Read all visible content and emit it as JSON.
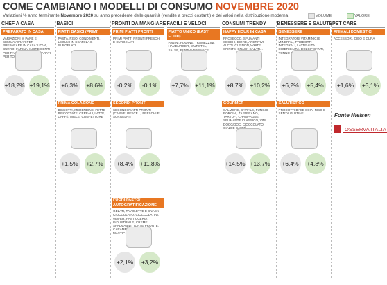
{
  "header": {
    "title_main": "COME CAMBIANO I MODELLI DI CONSUMO",
    "title_highlight": "NOVEMBRE 2020",
    "subtitle": [
      "Variazioni % anno terminante ",
      "Novembre 2020",
      " su anno precedente delle quantità (vendite a prezzi costanti) e dei valori nella distribuzione moderna"
    ],
    "legend": [
      "VOLUME",
      "VALORE"
    ]
  },
  "columns": [
    {
      "title": "CHEF A CASA",
      "cards": [
        {
          "row": 0,
          "label": "PREPARATO IN CASA",
          "description": "VARIAZIONI % PANE E SEMILAVORATI PER PREPARARE IN CASA: UOVA, BURRO, FARINA, INGREDIENTI PER PASTICCERIA, PREPARATI PER TORTE E DESSERT",
          "volume": "+18,2%",
          "valore": "+19,1%"
        }
      ]
    },
    {
      "title": "BASICI",
      "cards": [
        {
          "row": 0,
          "label": "PIATTI BASICI (PRIMI)",
          "description": "PASTA, RISO, CONDIMENTI, LEGUMI IN SCATOLA E SURGELATI",
          "volume": "+6,3%",
          "valore": "+8,6%"
        },
        {
          "row": 1,
          "label": "PRIMA COLAZIONE",
          "description": "BISCOTTI, MERENDINE, FETTE BISCOTTATE, CEREALI, LATTE, CAFFÈ, MIELE, CONFETTURE",
          "volume": "+1,5%",
          "valore": "+2,7%"
        }
      ]
    },
    {
      "title": "PRONTI DA MANGIARE",
      "cards": [
        {
          "row": 0,
          "label": "PRIMI PIATTI PRONTI",
          "description": "PRIMI PIATTI PRONTI FRESCHI E SURGELATI",
          "volume": "-0,2%",
          "valore": "-0,1%"
        },
        {
          "row": 1,
          "label": "SECONDI PRONTI",
          "description": "SECONDI PIATTI PRONTI (CARNE, PESCE...) FRESCHI E SURGELATI",
          "volume": "+8,4%",
          "valore": "+11,8%"
        },
        {
          "row": 2,
          "label": "FUORI PASTO/ AUTOGRATIFICAZIONE",
          "description": "GELATI, TAVOLETTE E SNACK CIOCCOLATO, CIOCCOLATINI, WAFER, PASTICCERIA INDUSTRIALE, CREME SPALMABILI, TORTE PRONTE, CARAMELLE, GOMME DA MASTICARE",
          "volume": "+2,1%",
          "valore": "+3,2%"
        }
      ]
    },
    {
      "title": "FACILI E VELOCI",
      "cards": [
        {
          "row": 0,
          "label": "PIATTO UNICO (EASY FOOD)",
          "description": "PANINI, PIADINE, TRAMEZZINI, HAMBURGER, WURSTEL, SALSE, PIZZE E FOCACCE",
          "volume": "+7,7%",
          "valore": "+11,1%"
        }
      ]
    },
    {
      "title": "CONSUMI TRENDY",
      "cards": [
        {
          "row": 0,
          "label": "HAPPY HOUR IN CASA",
          "description": "PROSECCO, SPUMANTI SECCHI, BIRRE, APERITIVI ALCOLICI E NON, WHITE SPIRITS, SNACK SALATI...",
          "volume": "+8,7%",
          "valore": "+10,2%"
        },
        {
          "row": 1,
          "label": "GOURMET",
          "description": "SALMONE, CAVIALE, FUNGHI PORCINI, ZAFFERANO, TARTUFI, CHAMPAGNE, SPUMANTE CLASSICO, VINI DOCG/DOC, CIOCCOLATO, CIALDE CAFFÈ",
          "volume": "+14,5%",
          "valore": "+13,7%"
        }
      ]
    },
    {
      "title": "BENESSERE E SALUTE",
      "cards": [
        {
          "row": 0,
          "label": "BENESSERE",
          "description": "INTEGRATORI VITAMINICI E MINERALI, PRODOTTI INTEGRALI, LATTE ALTA DIGERIBILITÀ, DOLCIFICANTI, TONNO NATURALE",
          "volume": "+6,2%",
          "valore": "+5,4%"
        },
        {
          "row": 1,
          "label": "SALUTISTICO",
          "description": "PRODOTTI BASE SOIA, RISO E SENZA GLUTINE",
          "volume": "+6,4%",
          "valore": "+4,8%"
        }
      ]
    },
    {
      "title": "PET CARE",
      "cards": [
        {
          "row": 0,
          "label": "ANIMALI DOMESTICI",
          "description": "ACCESSORI, CIBO E CURA",
          "volume": "+1,6%",
          "valore": "+3,1%"
        }
      ]
    }
  ],
  "source": "Fonte Nielsen",
  "logo": "OSSERVA ITALIA"
}
